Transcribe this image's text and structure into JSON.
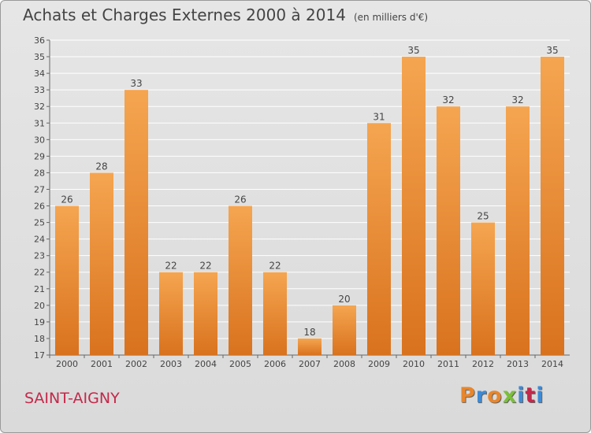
{
  "header": {
    "title": "Achats et Charges Externes 2000 à 2014",
    "unit": "(en milliers d'€)"
  },
  "footer": {
    "commune": "SAINT-AIGNY",
    "logo": "Proxiti",
    "logo_colors": [
      "#e8862c",
      "#3d8ad6",
      "#e8862c",
      "#7bbf3a",
      "#3d8ad6",
      "#c4284a",
      "#3d8ad6"
    ]
  },
  "colors": {
    "bar_light": "#f5a550",
    "bar_dark": "#d9721e",
    "grid": "#ffffff",
    "text": "#444444"
  },
  "chart_data": {
    "type": "bar",
    "categories": [
      "2000",
      "2001",
      "2002",
      "2003",
      "2004",
      "2005",
      "2006",
      "2007",
      "2008",
      "2009",
      "2010",
      "2011",
      "2012",
      "2013",
      "2014"
    ],
    "values": [
      26,
      28,
      33,
      22,
      22,
      26,
      22,
      18,
      20,
      31,
      35,
      32,
      25,
      32,
      35
    ],
    "ylim": [
      17,
      36
    ],
    "yticks": [
      17,
      18,
      19,
      20,
      21,
      22,
      23,
      24,
      25,
      26,
      27,
      28,
      29,
      30,
      31,
      32,
      33,
      34,
      35,
      36
    ],
    "grid": true,
    "title": "Achats et Charges Externes 2000 à 2014",
    "xlabel": "",
    "ylabel": ""
  }
}
